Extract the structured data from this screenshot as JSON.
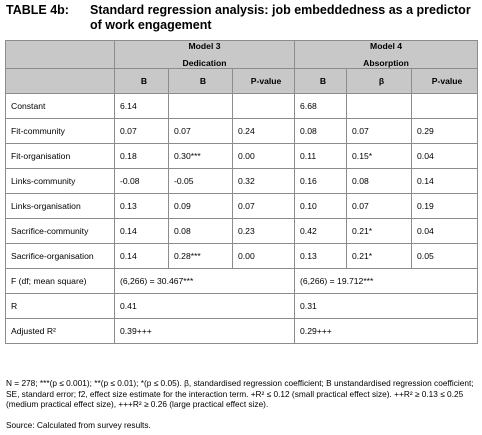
{
  "title": {
    "label": "TABLE 4b:",
    "text": "Standard regression analysis: job embeddedness as a predictor of work engagement"
  },
  "models": [
    {
      "name": "Model 3",
      "subtitle": "Dedication"
    },
    {
      "name": "Model 4",
      "subtitle": "Absorption"
    }
  ],
  "col_headers": [
    "B",
    "B",
    "P-value",
    "B",
    "β",
    "P-value"
  ],
  "rows": [
    {
      "label": "Constant",
      "m3_b": "6.14",
      "m3_beta": "",
      "m3_p": "",
      "m4_b": "6.68",
      "m4_beta": "",
      "m4_p": ""
    },
    {
      "label": "Fit-community",
      "m3_b": "0.07",
      "m3_beta": "0.07",
      "m3_p": "0.24",
      "m4_b": "0.08",
      "m4_beta": "0.07",
      "m4_p": "0.29"
    },
    {
      "label": "Fit-organisation",
      "m3_b": "0.18",
      "m3_beta": "0.30***",
      "m3_p": "0.00",
      "m4_b": "0.11",
      "m4_beta": "0.15*",
      "m4_p": "0.04"
    },
    {
      "label": "Links-community",
      "m3_b": "-0.08",
      "m3_beta": "-0.05",
      "m3_p": "0.32",
      "m4_b": "0.16",
      "m4_beta": "0.08",
      "m4_p": "0.14"
    },
    {
      "label": "Links-organisation",
      "m3_b": "0.13",
      "m3_beta": "0.09",
      "m3_p": "0.07",
      "m4_b": "0.10",
      "m4_beta": "0.07",
      "m4_p": "0.19"
    },
    {
      "label": "Sacrifice-community",
      "m3_b": "0.14",
      "m3_beta": "0.08",
      "m3_p": "0.23",
      "m4_b": "0.42",
      "m4_beta": "0.21*",
      "m4_p": "0.04"
    },
    {
      "label": "Sacrifice-organisation",
      "m3_b": "0.14",
      "m3_beta": "0.28***",
      "m3_p": "0.00",
      "m4_b": "0.13",
      "m4_beta": "0.21*",
      "m4_p": "0.05"
    }
  ],
  "summary": [
    {
      "label": "F (df; mean square)",
      "m3": "(6,266) = 30.467***",
      "m4": "(6,266) = 19.712***"
    },
    {
      "label": "R",
      "m3": "0.41",
      "m4": "0.31"
    },
    {
      "label": "Adjusted R²",
      "m3": "0.39+++",
      "m4": "0.29+++"
    }
  ],
  "notes": "N = 278; ***(p ≤ 0.001); **(p ≤ 0.01); *(p ≤ 0.05). β, standardised regression coefficient; B unstandardised regression coefficient; SE, standard error; f2, effect size estimate for the interaction term. +R² ≤ 0.12 (small practical effect size). ++R² ≥ 0.13 ≤ 0.25 (medium practical effect size), +++R² ≥ 0.26 (large practical effect size).",
  "source": "Source: Calculated from survey results."
}
